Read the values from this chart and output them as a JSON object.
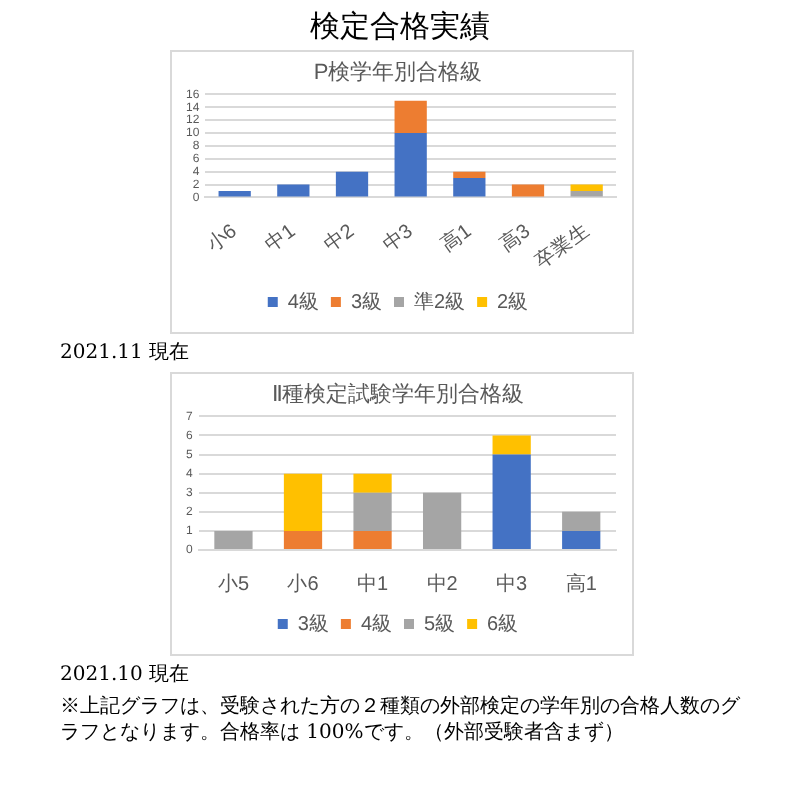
{
  "chart_data": [
    {
      "type": "bar",
      "title": "P検学年別合格級",
      "stacked": true,
      "grid": "y",
      "legend": "bottom",
      "categories": [
        "小6",
        "中1",
        "中2",
        "中3",
        "高1",
        "高3",
        "卒業生"
      ],
      "series": [
        {
          "name": "4級",
          "color": "#4472c4",
          "values": [
            1,
            2,
            4,
            10,
            3,
            0,
            0
          ]
        },
        {
          "name": "3級",
          "color": "#ed7d31",
          "values": [
            0,
            0,
            0,
            5,
            1,
            2,
            0
          ]
        },
        {
          "name": "準2級",
          "color": "#a5a5a5",
          "values": [
            0,
            0,
            0,
            0,
            0,
            0,
            1
          ]
        },
        {
          "name": "2級",
          "color": "#ffc000",
          "values": [
            0,
            0,
            0,
            0,
            0,
            0,
            1
          ]
        }
      ],
      "ylim": [
        0,
        16
      ],
      "yticks": [
        0,
        2,
        4,
        6,
        8,
        10,
        12,
        14,
        16
      ],
      "annotations": [
        "検定合格実績",
        "2021.11 現在"
      ]
    },
    {
      "type": "bar",
      "title": "Ⅱ種検定試験学年別合格級",
      "stacked": true,
      "grid": "y",
      "legend": "bottom",
      "categories": [
        "小5",
        "小6",
        "中1",
        "中2",
        "中3",
        "高1"
      ],
      "series": [
        {
          "name": "3級",
          "color": "#4472c4",
          "values": [
            0,
            0,
            0,
            0,
            5,
            1
          ]
        },
        {
          "name": "4級",
          "color": "#ed7d31",
          "values": [
            0,
            1,
            1,
            0,
            0,
            0
          ]
        },
        {
          "name": "5級",
          "color": "#a5a5a5",
          "values": [
            1,
            0,
            2,
            3,
            0,
            1
          ]
        },
        {
          "name": "6級",
          "color": "#ffc000",
          "values": [
            0,
            3,
            1,
            0,
            1,
            0
          ]
        }
      ],
      "ylim": [
        0,
        7
      ],
      "yticks": [
        0,
        1,
        2,
        3,
        4,
        5,
        6,
        7
      ],
      "annotations": [
        "2021.10 現在",
        "※上記グラフは、受験された方の２種類の外部検定の学年別の合格人数のグラフとなります。合格率は 100%です。（外部受験者含まず）"
      ]
    }
  ]
}
